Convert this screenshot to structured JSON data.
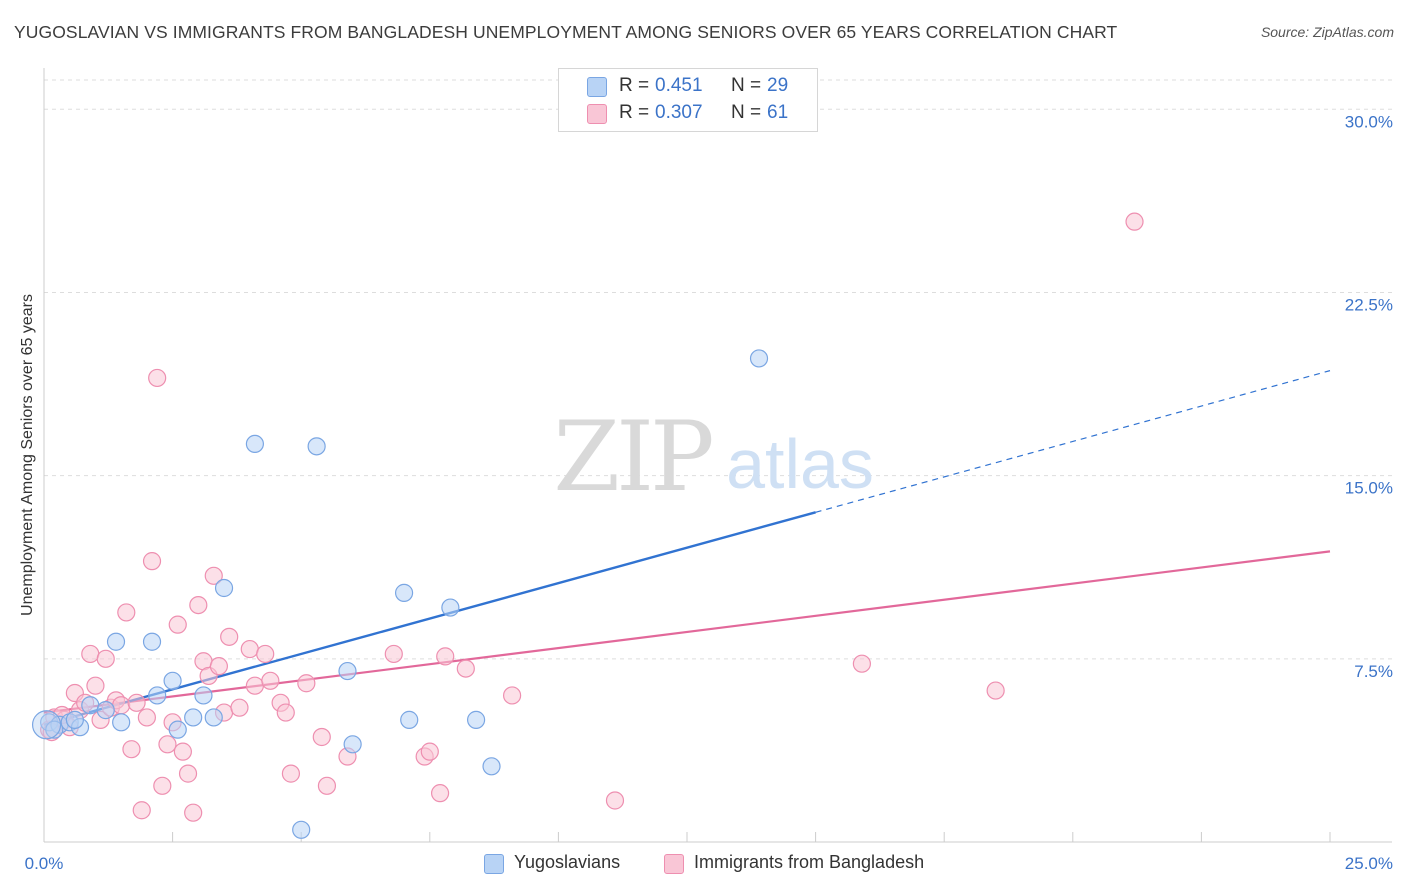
{
  "title": "YUGOSLAVIAN VS IMMIGRANTS FROM BANGLADESH UNEMPLOYMENT AMONG SENIORS OVER 65 YEARS CORRELATION CHART",
  "source": "Source: ZipAtlas.com",
  "watermark": {
    "zip": "ZIP",
    "atlas": "atlas"
  },
  "stats_legend": [
    {
      "r_label": "R =",
      "r_value": "0.451",
      "n_label": "N =",
      "n_value": "29",
      "fill": "#b8d3f5",
      "stroke": "#7aa6e3"
    },
    {
      "r_label": "R =",
      "r_value": "0.307",
      "n_label": "N =",
      "n_value": "61",
      "fill": "#f9c6d6",
      "stroke": "#ee8fb0"
    }
  ],
  "colors": {
    "blue_fill": "#b8d3f5",
    "blue_stroke": "#7aa6e3",
    "blue_line": "#3173d1",
    "pink_fill": "#f9c6d6",
    "pink_stroke": "#ee8fb0",
    "pink_line": "#e2689a",
    "tick_label": "#3b73c8",
    "grid": "#dddddd"
  },
  "chart_data": {
    "type": "scatter",
    "title": "YUGOSLAVIAN VS IMMIGRANTS FROM BANGLADESH UNEMPLOYMENT AMONG SENIORS OVER 65 YEARS CORRELATION CHART",
    "xlabel": "",
    "ylabel": "Unemployment Among Seniors over 65 years",
    "xlim": [
      0,
      25
    ],
    "ylim": [
      0,
      31.2
    ],
    "x_tick_labels": [
      {
        "value": 0,
        "label": "0.0%"
      },
      {
        "value": 25,
        "label": "25.0%"
      }
    ],
    "y_ticks": [
      {
        "value": 7.5,
        "label": "7.5%"
      },
      {
        "value": 15,
        "label": "15.0%"
      },
      {
        "value": 22.5,
        "label": "22.5%"
      },
      {
        "value": 30,
        "label": "30.0%"
      }
    ],
    "grid": true,
    "series": [
      {
        "name": "Yugoslavians",
        "r": 0.451,
        "n": 29,
        "points": [
          [
            0.1,
            4.9
          ],
          [
            0.3,
            4.8
          ],
          [
            0.5,
            4.9
          ],
          [
            0.7,
            4.7
          ],
          [
            0.9,
            5.6
          ],
          [
            1.2,
            5.4
          ],
          [
            1.5,
            4.9
          ],
          [
            1.4,
            8.2
          ],
          [
            2.1,
            8.2
          ],
          [
            2.2,
            6.0
          ],
          [
            2.5,
            6.6
          ],
          [
            2.6,
            4.6
          ],
          [
            2.9,
            5.1
          ],
          [
            3.1,
            6.0
          ],
          [
            3.3,
            5.1
          ],
          [
            3.5,
            10.4
          ],
          [
            4.1,
            16.3
          ],
          [
            5.0,
            0.5
          ],
          [
            5.3,
            16.2
          ],
          [
            5.9,
            7.0
          ],
          [
            6.0,
            4.0
          ],
          [
            7.0,
            10.2
          ],
          [
            7.1,
            5.0
          ],
          [
            7.9,
            9.6
          ],
          [
            8.4,
            5.0
          ],
          [
            8.7,
            3.1
          ],
          [
            13.9,
            19.8
          ],
          [
            0.2,
            4.6
          ],
          [
            0.6,
            5.0
          ]
        ],
        "trend": {
          "x0": 0,
          "y0": 4.8,
          "x1": 15.0,
          "y1": 13.5,
          "dash_to_x": 25.0,
          "dash_to_y": 19.3
        }
      },
      {
        "name": "Immigrants from Bangladesh",
        "r": 0.307,
        "n": 61,
        "points": [
          [
            0.1,
            4.6
          ],
          [
            0.2,
            5.1
          ],
          [
            0.3,
            4.8
          ],
          [
            0.4,
            5.0
          ],
          [
            0.5,
            4.7
          ],
          [
            0.6,
            6.1
          ],
          [
            0.7,
            5.4
          ],
          [
            0.8,
            5.7
          ],
          [
            0.9,
            7.7
          ],
          [
            1.0,
            6.4
          ],
          [
            1.1,
            5.0
          ],
          [
            1.2,
            7.5
          ],
          [
            1.3,
            5.5
          ],
          [
            1.4,
            5.8
          ],
          [
            1.5,
            5.6
          ],
          [
            1.6,
            9.4
          ],
          [
            1.7,
            3.8
          ],
          [
            1.8,
            5.7
          ],
          [
            1.9,
            1.3
          ],
          [
            2.0,
            5.1
          ],
          [
            2.1,
            11.5
          ],
          [
            2.2,
            19.0
          ],
          [
            2.3,
            2.3
          ],
          [
            2.4,
            4.0
          ],
          [
            2.5,
            4.9
          ],
          [
            2.6,
            8.9
          ],
          [
            2.7,
            3.7
          ],
          [
            2.8,
            2.8
          ],
          [
            2.9,
            1.2
          ],
          [
            3.0,
            9.7
          ],
          [
            3.1,
            7.4
          ],
          [
            3.2,
            6.8
          ],
          [
            3.3,
            10.9
          ],
          [
            3.4,
            7.2
          ],
          [
            3.5,
            5.3
          ],
          [
            3.6,
            8.4
          ],
          [
            3.8,
            5.5
          ],
          [
            4.0,
            7.9
          ],
          [
            4.1,
            6.4
          ],
          [
            4.3,
            7.7
          ],
          [
            4.4,
            6.6
          ],
          [
            4.6,
            5.7
          ],
          [
            4.7,
            5.3
          ],
          [
            4.8,
            2.8
          ],
          [
            5.1,
            6.5
          ],
          [
            5.4,
            4.3
          ],
          [
            5.5,
            2.3
          ],
          [
            5.9,
            3.5
          ],
          [
            6.8,
            7.7
          ],
          [
            7.4,
            3.5
          ],
          [
            7.5,
            3.7
          ],
          [
            7.7,
            2.0
          ],
          [
            7.8,
            7.6
          ],
          [
            8.2,
            7.1
          ],
          [
            9.1,
            6.0
          ],
          [
            11.1,
            1.7
          ],
          [
            15.9,
            7.3
          ],
          [
            18.5,
            6.2
          ],
          [
            21.2,
            25.4
          ],
          [
            0.15,
            4.5
          ],
          [
            0.35,
            5.2
          ]
        ],
        "trend": {
          "x0": 0,
          "y0": 5.3,
          "x1": 25.0,
          "y1": 11.9
        }
      }
    ]
  },
  "bottom_legend": [
    {
      "label": "Yugoslavians",
      "fill": "#b8d3f5",
      "stroke": "#7aa6e3"
    },
    {
      "label": "Immigrants from Bangladesh",
      "fill": "#f9c6d6",
      "stroke": "#ee8fb0"
    }
  ]
}
